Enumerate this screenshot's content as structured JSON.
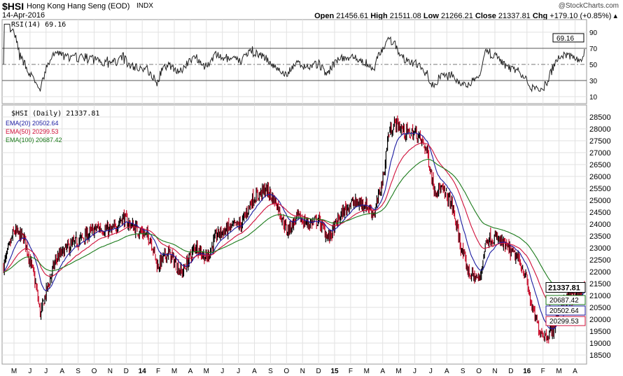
{
  "header": {
    "symbol": "$HSI",
    "name": "Hong Kong Hang Seng (EOD)",
    "type": "INDX",
    "date": "14-Apr-2016",
    "watermark": "@StockCharts.com",
    "open_label": "Open",
    "open": "21456.61",
    "high_label": "High",
    "high": "21511.08",
    "low_label": "Low",
    "low": "21266.21",
    "close_label": "Close",
    "close": "21337.81",
    "chg_label": "Chg",
    "chg": "+179.10 (+0.85%)"
  },
  "chart_data": [
    {
      "type": "line",
      "title": "RSI(14) 69.16",
      "ylim": [
        0,
        100
      ],
      "yticks": [
        10,
        30,
        50,
        70,
        90
      ],
      "last_value": "69.16",
      "overbought": 70,
      "oversold": 30
    },
    {
      "type": "ohlc",
      "title": "$HSI (Daily) 21337.81",
      "x_unit": "months since 1-May-2013",
      "legend": [
        {
          "name": "EMA(20) 20502.64",
          "color": "#1a1aa0",
          "period": 20,
          "last": "20502.64"
        },
        {
          "name": "EMA(50) 20299.53",
          "color": "#d0103a",
          "period": 50,
          "last": "20299.53"
        },
        {
          "name": "EMA(100) 20687.42",
          "color": "#1a7a1a",
          "period": 100,
          "last": "20687.42"
        }
      ],
      "last_price": "21337.81",
      "ylim": [
        18100,
        28900
      ],
      "yticks": [
        18500,
        19000,
        19500,
        20000,
        20500,
        21000,
        21500,
        22000,
        22500,
        23000,
        23500,
        24000,
        24500,
        25000,
        25500,
        26000,
        26500,
        27000,
        27500,
        28000,
        28500
      ],
      "xticks": [
        "M",
        "J",
        "J",
        "A",
        "S",
        "O",
        "N",
        "D",
        "14",
        "F",
        "M",
        "A",
        "M",
        "J",
        "J",
        "A",
        "S",
        "O",
        "N",
        "D",
        "15",
        "F",
        "M",
        "A",
        "M",
        "J",
        "J",
        "A",
        "S",
        "O",
        "N",
        "D",
        "16",
        "F",
        "M",
        "A"
      ],
      "anchors": [
        [
          -0.65,
          22230
        ],
        [
          0,
          23700
        ],
        [
          0.65,
          23400
        ],
        [
          1.3,
          21650
        ],
        [
          1.66,
          20180
        ],
        [
          1.97,
          21060
        ],
        [
          2.62,
          22530
        ],
        [
          3.28,
          22970
        ],
        [
          3.93,
          23260
        ],
        [
          4.59,
          23560
        ],
        [
          5.24,
          23850
        ],
        [
          6.11,
          23700
        ],
        [
          6.77,
          24290
        ],
        [
          7.21,
          24000
        ],
        [
          7.86,
          23700
        ],
        [
          8.52,
          23400
        ],
        [
          8.95,
          22230
        ],
        [
          9.61,
          22820
        ],
        [
          10.48,
          21940
        ],
        [
          11.35,
          23120
        ],
        [
          12.01,
          22530
        ],
        [
          12.66,
          23560
        ],
        [
          13.54,
          23850
        ],
        [
          14.19,
          24000
        ],
        [
          14.85,
          25030
        ],
        [
          15.72,
          25470
        ],
        [
          16.38,
          24880
        ],
        [
          17.03,
          23700
        ],
        [
          17.69,
          24290
        ],
        [
          18.34,
          24000
        ],
        [
          19.0,
          24150
        ],
        [
          19.65,
          23400
        ],
        [
          20.31,
          24290
        ],
        [
          20.96,
          24880
        ],
        [
          21.83,
          24880
        ],
        [
          22.49,
          24440
        ],
        [
          23.06,
          26060
        ],
        [
          23.36,
          27820
        ],
        [
          23.8,
          28260
        ],
        [
          24.45,
          27820
        ],
        [
          25.11,
          27820
        ],
        [
          25.76,
          27090
        ],
        [
          26.2,
          25470
        ],
        [
          26.64,
          25470
        ],
        [
          27.29,
          24880
        ],
        [
          27.95,
          22820
        ],
        [
          28.38,
          21940
        ],
        [
          29.04,
          21650
        ],
        [
          29.48,
          23400
        ],
        [
          30.13,
          23400
        ],
        [
          30.79,
          22970
        ],
        [
          31.44,
          22530
        ],
        [
          31.88,
          21940
        ],
        [
          32.31,
          20470
        ],
        [
          32.75,
          19590
        ],
        [
          33.19,
          19290
        ],
        [
          33.62,
          19590
        ],
        [
          34.06,
          20470
        ],
        [
          34.72,
          21060
        ],
        [
          35.37,
          21160
        ],
        [
          35.6,
          21337.81
        ]
      ]
    }
  ]
}
